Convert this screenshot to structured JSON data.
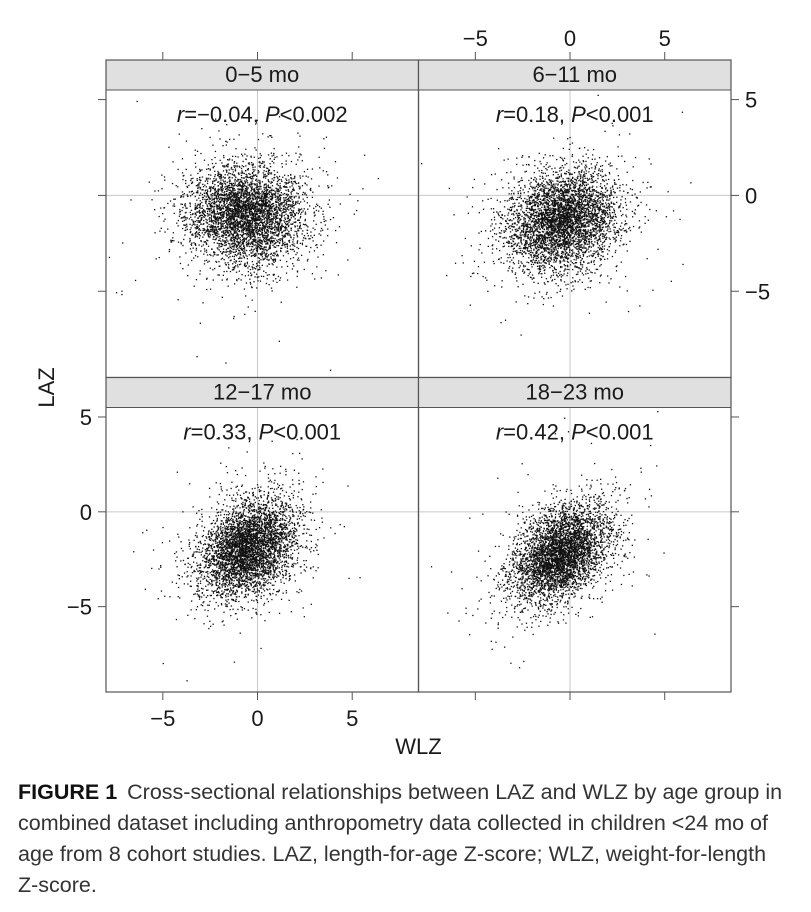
{
  "chart_data": {
    "type": "scatter",
    "xlabel": "WLZ",
    "ylabel": "LAZ",
    "xlim": [
      -8,
      8.5
    ],
    "ylim": [
      -9.5,
      5.5
    ],
    "xticks": [
      -5,
      0,
      5
    ],
    "yticks": [
      -5,
      0,
      5
    ],
    "reference_lines": {
      "x": 0,
      "y": 0
    },
    "layout": "2x2 lattice with strip titles; x-axis labels alternate bottom/top, y-axis labels alternate left/right",
    "panels": [
      {
        "strip": "0−5 mo",
        "annotation": {
          "r_label": "r",
          "rest": "=−0.04, ",
          "p_label": "P",
          "p_rest": "<0.002"
        },
        "correlation": -0.04,
        "center": [
          -0.6,
          -1.0
        ],
        "sd": [
          1.55,
          1.3
        ],
        "n_points": 4200
      },
      {
        "strip": "6−11 mo",
        "annotation": {
          "r_label": "r",
          "rest": "=0.18, ",
          "p_label": "P",
          "p_rest": "<0.001"
        },
        "correlation": 0.18,
        "center": [
          -0.4,
          -1.3
        ],
        "sd": [
          1.45,
          1.3
        ],
        "n_points": 4200
      },
      {
        "strip": "12−17 mo",
        "annotation": {
          "r_label": "r",
          "rest": "=0.33, ",
          "p_label": "P",
          "p_rest": "<0.001"
        },
        "correlation": 0.33,
        "center": [
          -0.5,
          -1.9
        ],
        "sd": [
          1.3,
          1.3
        ],
        "n_points": 4200
      },
      {
        "strip": "18−23 mo",
        "annotation": {
          "r_label": "r",
          "rest": "=0.42, ",
          "p_label": "P",
          "p_rest": "<0.001"
        },
        "correlation": 0.42,
        "center": [
          -0.5,
          -2.2
        ],
        "sd": [
          1.3,
          1.3
        ],
        "n_points": 4200
      }
    ],
    "colors": {
      "points": "#111111",
      "strip_bg": "#e0e0e0",
      "grid": "#c8c8c8",
      "frame": "#555555"
    }
  },
  "caption": {
    "label": "FIGURE 1",
    "text": "Cross-sectional relationships between LAZ and WLZ by age group in combined dataset including anthropometry data collected in children <24 mo of age from 8 cohort studies. LAZ, length-for-age Z-score; WLZ, weight-for-length Z-score."
  }
}
